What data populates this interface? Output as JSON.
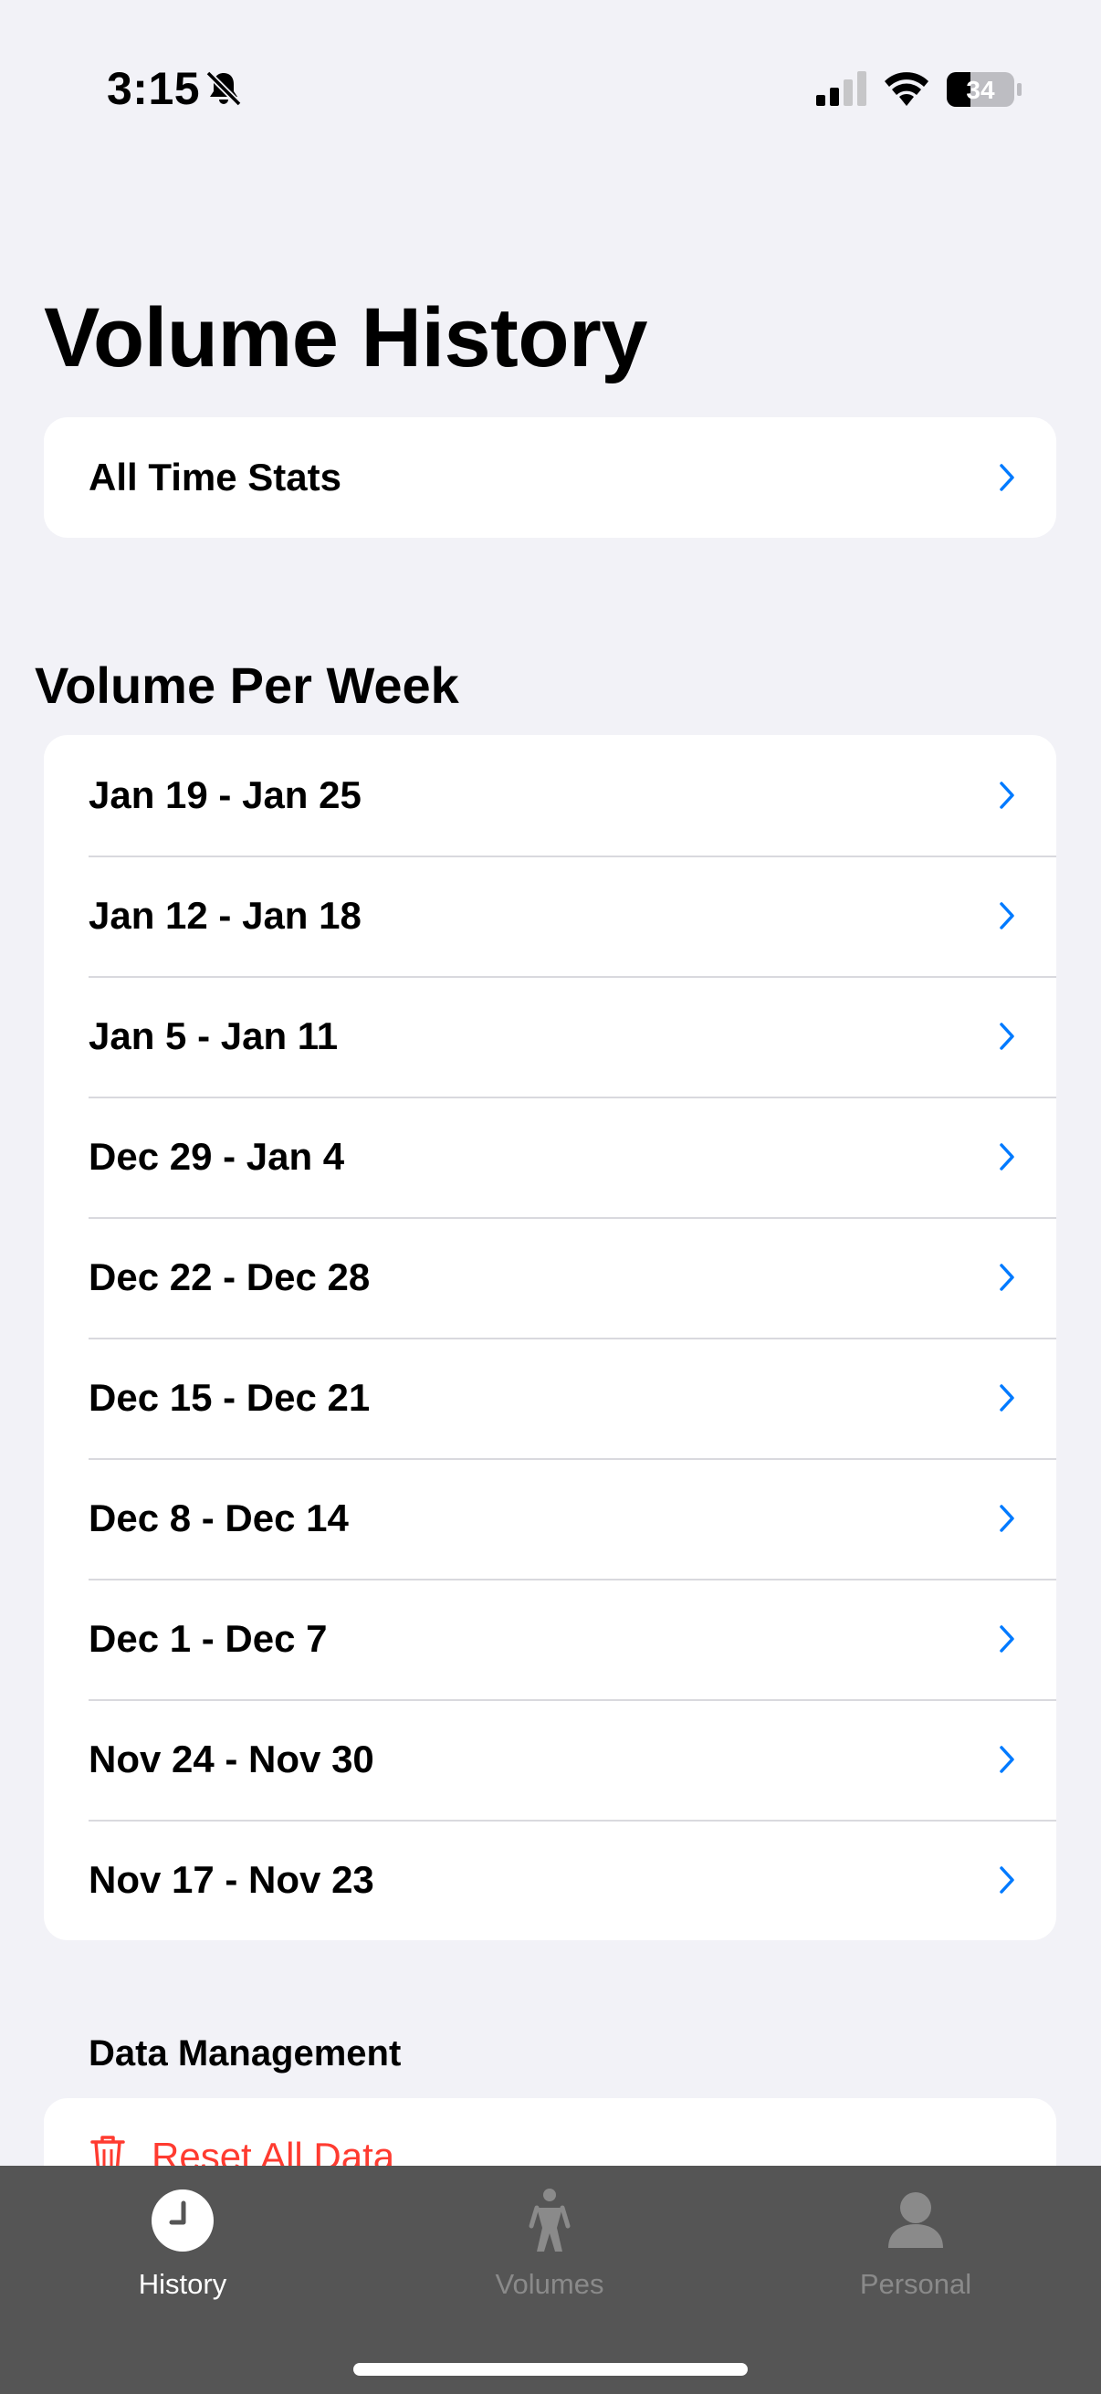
{
  "status_bar": {
    "time": "3:15",
    "battery_level": "34"
  },
  "page": {
    "title": "Volume History"
  },
  "all_time": {
    "label": "All Time Stats"
  },
  "volume_per_week": {
    "header": "Volume Per Week",
    "items": [
      {
        "label": "Jan 19 - Jan 25"
      },
      {
        "label": "Jan 12 - Jan 18"
      },
      {
        "label": "Jan 5 - Jan 11"
      },
      {
        "label": "Dec 29 - Jan 4"
      },
      {
        "label": "Dec 22 - Dec 28"
      },
      {
        "label": "Dec 15 - Dec 21"
      },
      {
        "label": "Dec 8 - Dec 14"
      },
      {
        "label": "Dec 1 - Dec 7"
      },
      {
        "label": "Nov 24 - Nov 30"
      },
      {
        "label": "Nov 17 - Nov 23"
      }
    ]
  },
  "data_management": {
    "header": "Data Management",
    "reset_label": "Reset All Data"
  },
  "tab_bar": {
    "tabs": [
      {
        "label": "History",
        "icon": "clock-icon",
        "active": true
      },
      {
        "label": "Volumes",
        "icon": "figure-icon",
        "active": false
      },
      {
        "label": "Personal",
        "icon": "person-icon",
        "active": false
      }
    ]
  },
  "colors": {
    "background": "#f2f2f7",
    "accent": "#007aff",
    "destructive": "#ff3b30",
    "tab_bar": "#555555"
  }
}
